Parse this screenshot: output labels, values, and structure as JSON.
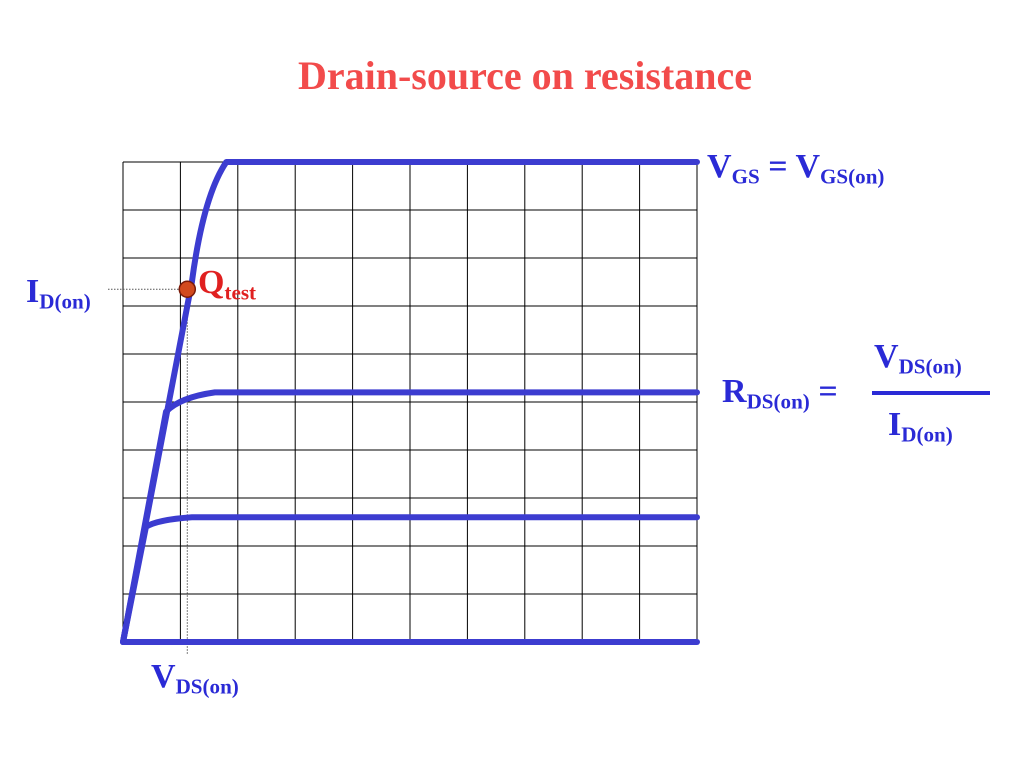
{
  "title": "Drain-source on resistance",
  "labels": {
    "vgs_main": "V",
    "vgs_sub": "GS",
    "vgs_eq": " = V",
    "vgs_on_sub": "GS(on)",
    "id_main": "I",
    "id_sub": "D(on)",
    "q_main": "Q",
    "q_sub": "test",
    "vds_main": "V",
    "vds_sub": "DS(on)",
    "rds_main": "R",
    "rds_sub": "DS(on)",
    "rds_eq": " =",
    "num_main": "V",
    "num_sub": "DS(on)",
    "den_main": "I",
    "den_sub": "D(on)"
  },
  "colors": {
    "title": "#f24b4b",
    "curve": "#3c3cd0",
    "text": "#2a2ad6",
    "point_fill": "#d24a1e",
    "grid": "#000000"
  },
  "chart_data": {
    "type": "line",
    "grid": true,
    "x_divisions": 10,
    "y_divisions": 10,
    "xlim": [
      0,
      10
    ],
    "ylim": [
      0,
      10
    ],
    "series": [
      {
        "values": [
          [
            0,
            0
          ],
          [
            1.2,
            7.5
          ],
          [
            1.4,
            9.3
          ],
          [
            1.8,
            10
          ],
          [
            10,
            10
          ]
        ]
      },
      {
        "values": [
          [
            0,
            0
          ],
          [
            0.75,
            4.8
          ],
          [
            1.0,
            5.1
          ],
          [
            1.6,
            5.2
          ],
          [
            10,
            5.2
          ]
        ]
      },
      {
        "values": [
          [
            0,
            0
          ],
          [
            0.4,
            2.4
          ],
          [
            0.6,
            2.55
          ],
          [
            1.2,
            2.6
          ],
          [
            10,
            2.6
          ]
        ]
      },
      {
        "values": [
          [
            0,
            0
          ],
          [
            10,
            0
          ]
        ]
      }
    ],
    "operating_point": {
      "x": 1.12,
      "y": 7.35
    }
  }
}
